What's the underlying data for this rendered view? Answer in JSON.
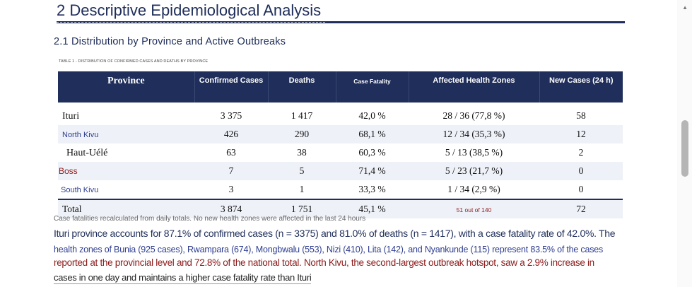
{
  "heading": "2 Descriptive Epidemiological Analysis",
  "subheading": "2.1 Distribution by Province and Active Outbreaks",
  "table_caption": "TABLE 1 - DISTRIBUTION OF CONFIRMED CASES AND DEATHS BY PROVINCE",
  "table": {
    "headers": [
      "Province",
      "Confirmed Cases",
      "Deaths",
      "Case Fatality",
      "Affected Health Zones",
      "New Cases (24 h)"
    ],
    "rows": [
      {
        "province": "Ituri",
        "confirmed": "3 375",
        "deaths": "1 417",
        "cfr": "42,0 %",
        "zones": "28 / 36 (77,8 %)",
        "new": "58"
      },
      {
        "province": "North Kivu",
        "confirmed": "426",
        "deaths": "290",
        "cfr": "68,1 %",
        "zones": "12 / 34 (35,3 %)",
        "new": "12"
      },
      {
        "province": "Haut-Uélé",
        "confirmed": "63",
        "deaths": "38",
        "cfr": "60,3 %",
        "zones": "5 / 13 (38,5 %)",
        "new": "2"
      },
      {
        "province": "Boss",
        "confirmed": "7",
        "deaths": "5",
        "cfr": "71,4 %",
        "zones": "5 / 23 (21,7 %)",
        "new": "0"
      },
      {
        "province": "South Kivu",
        "confirmed": "3",
        "deaths": "1",
        "cfr": "33,3 %",
        "zones": "1 / 34 (2,9 %)",
        "new": "0"
      }
    ],
    "total": {
      "province": "Total",
      "confirmed": "3 874",
      "deaths": "1 751",
      "cfr": "45,1 %",
      "zones": "51 out of 140",
      "new": "72"
    }
  },
  "table_note": "Case fatalities recalculated from daily totals. No new health zones were affected in the last 24 hours",
  "paragraph": [
    "Ituri province accounts for 87.1% of confirmed cases (n = 3375) and 81.0% of deaths (n = 1417), with a case fatality rate of 42.0%. The",
    "health zones of Bunia (925 cases), Rwampara (674), Mongbwalu (553), Nizi (410), Lita (142), and Nyankunde (115) represent 83.5% of the cases",
    "reported at the provincial level and 72.8% of the national total. North Kivu, the second-largest outbreak hotspot, saw a 2.9% increase in",
    "cases in one day and maintains a higher case fatality rate than Ituri"
  ],
  "colors": {
    "header_navy": "#1f2e5a",
    "text_blue": "#2e3d8f",
    "text_red": "#8b1a1a",
    "row_tint": "#eef1f8"
  }
}
